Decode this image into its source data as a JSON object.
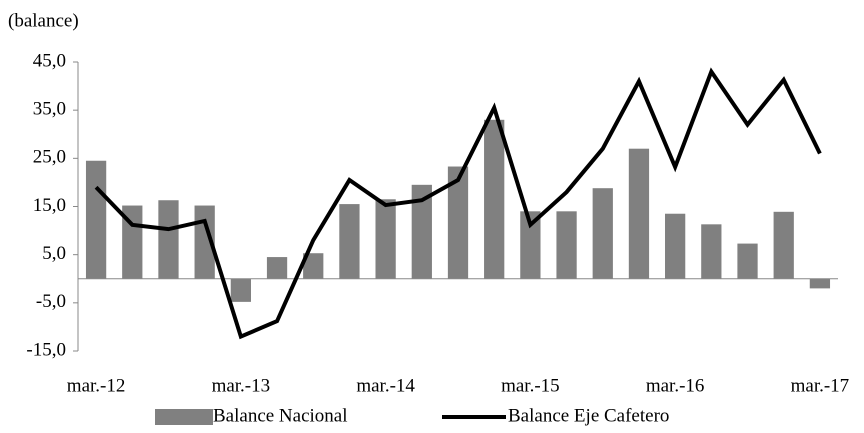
{
  "chart_data": {
    "type": "bar-line",
    "subtitle": "(balance)",
    "categories": [
      "mar.-12",
      null,
      null,
      null,
      "mar.-13",
      null,
      null,
      null,
      "mar.-14",
      null,
      null,
      null,
      "mar.-15",
      null,
      null,
      null,
      "mar.-16",
      null,
      null,
      null,
      "mar.-17"
    ],
    "series": [
      {
        "name": "Balance Nacional",
        "type": "bar",
        "color": "#808080",
        "values": [
          24.5,
          15.2,
          16.3,
          15.2,
          -4.8,
          4.5,
          5.3,
          15.5,
          16.5,
          19.5,
          23.3,
          33.0,
          14.0,
          14.0,
          18.8,
          27.0,
          13.5,
          11.3,
          7.3,
          13.9,
          -2.0
        ]
      },
      {
        "name": "Balance Eje Cafetero",
        "type": "line",
        "color": "#000000",
        "values": [
          19.0,
          11.2,
          10.3,
          12.0,
          -12.0,
          -8.8,
          8.0,
          20.5,
          15.3,
          16.3,
          20.5,
          35.5,
          11.2,
          18.0,
          27.0,
          41.0,
          23.2,
          43.0,
          32.0,
          41.3,
          26.0
        ]
      }
    ],
    "ylim": [
      -15,
      45
    ],
    "yticks": [
      {
        "value": -15,
        "label": "-15,0"
      },
      {
        "value": -5,
        "label": "-5,0"
      },
      {
        "value": 5,
        "label": "5,0"
      },
      {
        "value": 15,
        "label": "15,0"
      },
      {
        "value": 25,
        "label": "25,0"
      },
      {
        "value": 35,
        "label": "35,0"
      },
      {
        "value": 45,
        "label": "45,0"
      }
    ],
    "legend": "bottom"
  }
}
